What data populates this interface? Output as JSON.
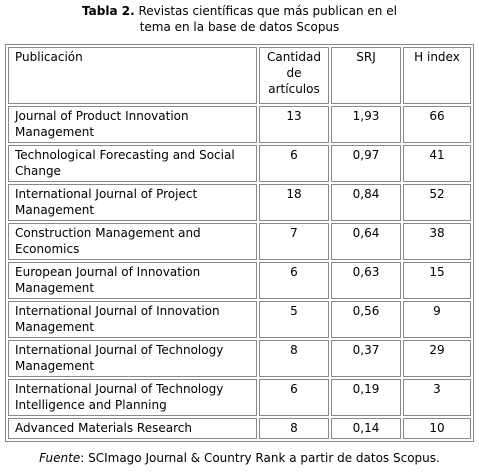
{
  "caption": {
    "label": "Tabla 2.",
    "text": "Revistas científicas que más publican en el tema en la base de datos Scopus"
  },
  "table": {
    "header": [
      "Publicación",
      "Cantidad de artículos",
      "SRJ",
      "H index"
    ],
    "rows": [
      [
        "Journal of Product Innovation Management",
        "13",
        "1,93",
        "66"
      ],
      [
        "Technological Forecasting and Social Change",
        "6",
        "0,97",
        "41"
      ],
      [
        "International Journal of Project Management",
        "18",
        "0,84",
        "52"
      ],
      [
        "Construction Management and Economics",
        "7",
        "0,64",
        "38"
      ],
      [
        "European Journal of Innovation Management",
        "6",
        "0,63",
        "15"
      ],
      [
        "International Journal of Innovation Management",
        "5",
        "0,56",
        "9"
      ],
      [
        "International Journal of Technology Management",
        "8",
        "0,37",
        "29"
      ],
      [
        "International Journal of Technology Intelligence and Planning",
        "6",
        "0,19",
        "3"
      ],
      [
        "Advanced Materials Research",
        "8",
        "0,14",
        "10"
      ]
    ]
  },
  "source": {
    "label": "Fuente",
    "text": ": SCImago Journal & Country Rank a partir de datos Scopus."
  }
}
